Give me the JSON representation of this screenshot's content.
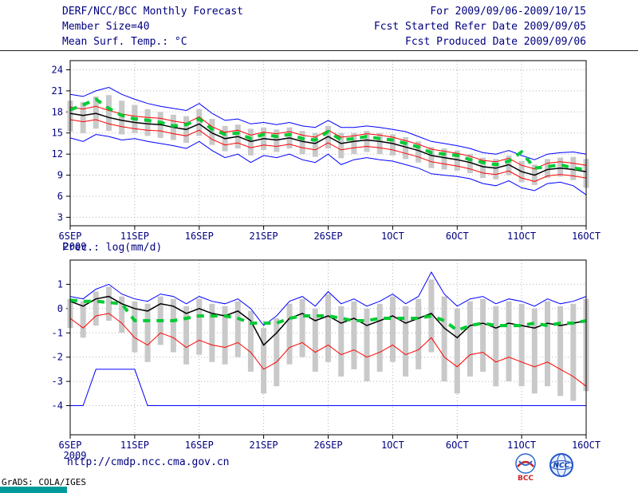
{
  "header": {
    "title": "DERF/NCC/BCC Monthly Forecast",
    "member_size": "Member Size=40",
    "for_range": "For 2009/09/06-2009/10/15",
    "refer_date": "Fcst Started Refer Date 2009/09/05",
    "produced_date": "Fcst Produced Date 2009/09/06"
  },
  "footer": {
    "url": "http://cmdp.ncc.cma.gov.cn",
    "grads_credit": "GrADS: COLA/IGES",
    "bcc_logo_text": "BCC",
    "ncc_logo_text": "NCC"
  },
  "colors": {
    "text": "#000080",
    "ensemble_envelope": "#0000ff",
    "std_band": "#ff0000",
    "ensemble_mean": "#000000",
    "observation": "#00cc33",
    "spread_bars": "#c9c9c9",
    "grid": "#b3b3b3"
  },
  "chart_data": [
    {
      "type": "line",
      "title": "Mean Surf. Temp.: °C",
      "x_tick_days": [
        0,
        5,
        10,
        15,
        20,
        25,
        30,
        35,
        40
      ],
      "x_tick_labels": [
        "6SEP",
        "11SEP",
        "16SEP",
        "21SEP",
        "26SEP",
        "1OCT",
        "6OCT",
        "11OCT",
        "16OCT"
      ],
      "x_sublabel": "2009",
      "ylim": [
        1.8,
        25.3
      ],
      "yticks": [
        3,
        6,
        9,
        12,
        15,
        18,
        21,
        24
      ],
      "grid": true,
      "series": [
        {
          "name": "ensemble-max",
          "color": "#0000ff",
          "width": 1,
          "values": [
            20.5,
            20.2,
            21.0,
            21.5,
            20.5,
            19.8,
            19.2,
            18.8,
            18.5,
            18.2,
            19.2,
            17.8,
            16.8,
            17.0,
            16.3,
            16.5,
            16.2,
            16.5,
            16.0,
            15.8,
            16.8,
            15.8,
            15.8,
            16.0,
            15.8,
            15.5,
            15.2,
            14.5,
            13.8,
            13.5,
            13.2,
            12.8,
            12.2,
            12.0,
            12.5,
            11.8,
            11.2,
            12.0,
            12.2,
            12.3,
            12.0
          ]
        },
        {
          "name": "mean-plus-std",
          "color": "#ff0000",
          "width": 1,
          "values": [
            18.7,
            18.4,
            18.8,
            18.2,
            17.7,
            17.4,
            17.2,
            17.1,
            16.7,
            16.4,
            17.3,
            15.9,
            15.1,
            15.4,
            14.7,
            15.1,
            14.9,
            15.2,
            14.7,
            14.4,
            15.4,
            14.4,
            14.6,
            14.9,
            14.7,
            14.4,
            13.9,
            13.4,
            12.7,
            12.4,
            12.1,
            11.7,
            11.1,
            10.9,
            11.4,
            10.4,
            9.9,
            10.7,
            10.9,
            10.7,
            10.4
          ]
        },
        {
          "name": "mean-minus-std",
          "color": "#ff0000",
          "width": 1,
          "values": [
            16.9,
            16.6,
            16.9,
            16.3,
            15.9,
            15.6,
            15.4,
            15.3,
            14.9,
            14.6,
            15.4,
            14.1,
            13.3,
            13.6,
            12.9,
            13.3,
            13.1,
            13.4,
            12.9,
            12.6,
            13.6,
            12.6,
            12.9,
            13.1,
            12.9,
            12.6,
            12.1,
            11.6,
            10.9,
            10.6,
            10.3,
            9.9,
            9.3,
            9.1,
            9.6,
            8.6,
            8.1,
            8.9,
            9.1,
            8.9,
            8.6
          ]
        },
        {
          "name": "ensemble-mean",
          "color": "#000000",
          "width": 1.5,
          "values": [
            17.8,
            17.5,
            17.8,
            17.2,
            16.8,
            16.5,
            16.3,
            16.2,
            15.8,
            15.5,
            16.3,
            15.0,
            14.2,
            14.5,
            13.8,
            14.2,
            14.0,
            14.3,
            13.8,
            13.5,
            14.5,
            13.5,
            13.8,
            14.0,
            13.8,
            13.5,
            13.0,
            12.5,
            11.8,
            11.5,
            11.2,
            10.8,
            10.2,
            10.0,
            10.5,
            9.5,
            9.0,
            9.8,
            10.0,
            9.8,
            9.5
          ]
        },
        {
          "name": "ensemble-min",
          "color": "#0000ff",
          "width": 1,
          "values": [
            14.3,
            13.8,
            14.8,
            14.5,
            14.0,
            14.2,
            13.8,
            13.5,
            13.2,
            12.8,
            13.8,
            12.5,
            11.5,
            12.0,
            10.8,
            11.8,
            11.5,
            12.0,
            11.2,
            10.8,
            12.0,
            10.5,
            11.2,
            11.5,
            11.2,
            11.0,
            10.5,
            10.0,
            9.2,
            9.0,
            8.8,
            8.5,
            7.8,
            7.5,
            8.2,
            7.2,
            6.8,
            7.8,
            8.0,
            7.5,
            6.2
          ]
        },
        {
          "name": "observation-dashed",
          "color": "#00cc33",
          "width": 4,
          "dash": "9 8",
          "values": [
            18.3,
            19.0,
            19.8,
            18.5,
            17.5,
            17.0,
            16.8,
            16.5,
            16.0,
            16.2,
            17.0,
            15.5,
            14.8,
            15.0,
            14.2,
            14.8,
            14.5,
            14.8,
            14.2,
            14.0,
            15.2,
            14.0,
            14.2,
            14.5,
            14.2,
            14.0,
            13.5,
            13.0,
            12.2,
            12.0,
            11.8,
            11.2,
            10.8,
            10.5,
            11.0,
            12.3,
            10.0,
            10.2,
            10.5,
            10.0,
            9.8
          ]
        }
      ],
      "bars": {
        "name": "ensemble-spread",
        "low": [
          15.2,
          15.0,
          15.6,
          15.3,
          14.8,
          15.0,
          14.6,
          14.3,
          14.0,
          13.6,
          14.6,
          13.3,
          12.4,
          12.8,
          11.8,
          12.6,
          12.3,
          12.8,
          12.0,
          11.6,
          12.8,
          11.4,
          12.0,
          12.3,
          12.0,
          11.8,
          11.3,
          10.8,
          10.0,
          9.8,
          9.6,
          9.3,
          8.6,
          8.4,
          9.0,
          8.0,
          7.6,
          8.6,
          8.8,
          8.3,
          7.2
        ],
        "high": [
          19.6,
          19.4,
          20.2,
          20.4,
          19.6,
          19.0,
          18.4,
          18.0,
          17.6,
          17.4,
          18.4,
          17.0,
          16.0,
          16.2,
          15.6,
          15.8,
          15.5,
          15.8,
          15.3,
          15.0,
          16.0,
          15.0,
          15.0,
          15.3,
          15.0,
          14.8,
          14.4,
          13.8,
          13.0,
          12.8,
          12.5,
          12.0,
          11.5,
          11.3,
          11.8,
          11.0,
          10.5,
          11.3,
          11.5,
          11.6,
          11.3
        ]
      }
    },
    {
      "type": "line",
      "title": "Prec.: log(mm/d)",
      "x_tick_days": [
        0,
        5,
        10,
        15,
        20,
        25,
        30,
        35,
        40
      ],
      "x_tick_labels": [
        "6SEP",
        "11SEP",
        "16SEP",
        "21SEP",
        "26SEP",
        "1OCT",
        "6OCT",
        "11OCT",
        "16OCT"
      ],
      "x_sublabel": "2009",
      "ylim": [
        -5.2,
        2.0
      ],
      "yticks": [
        -4,
        -3,
        -2,
        -1,
        0,
        1
      ],
      "grid": true,
      "series": [
        {
          "name": "ensemble-max",
          "color": "#0000ff",
          "width": 1,
          "values": [
            0.5,
            0.4,
            0.8,
            1.0,
            0.6,
            0.4,
            0.3,
            0.6,
            0.5,
            0.2,
            0.5,
            0.3,
            0.2,
            0.4,
            0.0,
            -0.7,
            -0.3,
            0.3,
            0.5,
            0.1,
            0.7,
            0.2,
            0.4,
            0.1,
            0.3,
            0.6,
            0.2,
            0.5,
            1.5,
            0.6,
            0.1,
            0.4,
            0.5,
            0.2,
            0.4,
            0.3,
            0.1,
            0.4,
            0.2,
            0.3,
            0.5
          ]
        },
        {
          "name": "mean-minus-std",
          "color": "#ff0000",
          "width": 1,
          "values": [
            -0.4,
            -0.8,
            -0.3,
            -0.2,
            -0.6,
            -1.2,
            -1.5,
            -1.0,
            -1.2,
            -1.6,
            -1.3,
            -1.5,
            -1.6,
            -1.4,
            -1.8,
            -2.5,
            -2.2,
            -1.6,
            -1.4,
            -1.8,
            -1.5,
            -1.9,
            -1.7,
            -2.0,
            -1.8,
            -1.5,
            -1.9,
            -1.7,
            -1.2,
            -2.0,
            -2.4,
            -1.9,
            -1.8,
            -2.2,
            -2.0,
            -2.2,
            -2.4,
            -2.2,
            -2.5,
            -2.8,
            -3.2
          ]
        },
        {
          "name": "ensemble-mean",
          "color": "#000000",
          "width": 1.5,
          "values": [
            0.3,
            0.1,
            0.4,
            0.5,
            0.2,
            0.0,
            -0.1,
            0.2,
            0.1,
            -0.2,
            0.0,
            -0.2,
            -0.3,
            -0.1,
            -0.5,
            -1.5,
            -1.0,
            -0.4,
            -0.2,
            -0.5,
            -0.3,
            -0.6,
            -0.4,
            -0.7,
            -0.5,
            -0.3,
            -0.6,
            -0.4,
            -0.2,
            -0.8,
            -1.2,
            -0.7,
            -0.6,
            -0.8,
            -0.6,
            -0.7,
            -0.8,
            -0.6,
            -0.7,
            -0.6,
            -0.5
          ]
        },
        {
          "name": "ensemble-min",
          "color": "#0000ff",
          "width": 1,
          "values": [
            -4,
            -4,
            -2.5,
            -2.5,
            -2.5,
            -2.5,
            -4,
            -4,
            -4,
            -4,
            -4,
            -4,
            -4,
            -4,
            -4,
            -4,
            -4,
            -4,
            -4,
            -4,
            -4,
            -4,
            -4,
            -4,
            -4,
            -4,
            -4,
            -4,
            -4,
            -4,
            -4,
            -4,
            -4,
            -4,
            -4,
            -4,
            -4,
            -4,
            -4,
            -4,
            -4
          ]
        },
        {
          "name": "observation-dashed",
          "color": "#00cc33",
          "width": 4,
          "dash": "9 8",
          "values": [
            0.35,
            0.3,
            0.3,
            0.25,
            0.2,
            -0.5,
            -0.5,
            -0.5,
            -0.5,
            -0.4,
            -0.3,
            -0.3,
            -0.3,
            -0.4,
            -0.6,
            -0.6,
            -0.6,
            -0.4,
            -0.3,
            -0.3,
            -0.3,
            -0.4,
            -0.5,
            -0.5,
            -0.4,
            -0.4,
            -0.4,
            -0.4,
            -0.3,
            -0.5,
            -0.9,
            -0.7,
            -0.6,
            -0.7,
            -0.7,
            -0.7,
            -0.6,
            -0.7,
            -0.6,
            -0.6,
            -0.5
          ]
        }
      ],
      "bars": {
        "name": "ensemble-spread",
        "low": [
          -0.8,
          -1.2,
          -0.7,
          -0.5,
          -1.0,
          -1.8,
          -2.2,
          -1.5,
          -1.8,
          -2.3,
          -1.9,
          -2.2,
          -2.3,
          -2.0,
          -2.6,
          -3.5,
          -3.2,
          -2.3,
          -2.0,
          -2.6,
          -2.2,
          -2.8,
          -2.5,
          -3.0,
          -2.6,
          -2.2,
          -2.8,
          -2.5,
          -1.8,
          -3.0,
          -3.5,
          -2.8,
          -2.6,
          -3.2,
          -3.0,
          -3.2,
          -3.5,
          -3.2,
          -3.6,
          -3.8,
          -3.4
        ],
        "high": [
          0.4,
          0.3,
          0.7,
          0.9,
          0.5,
          0.3,
          0.2,
          0.5,
          0.4,
          0.1,
          0.4,
          0.2,
          0.1,
          0.3,
          -0.1,
          -0.8,
          -0.4,
          0.2,
          0.4,
          0.0,
          0.6,
          0.1,
          0.3,
          0.0,
          0.2,
          0.5,
          0.1,
          0.4,
          1.2,
          0.5,
          0.0,
          0.3,
          0.4,
          0.1,
          0.3,
          0.2,
          0.0,
          0.3,
          0.1,
          0.2,
          0.4
        ]
      }
    }
  ]
}
